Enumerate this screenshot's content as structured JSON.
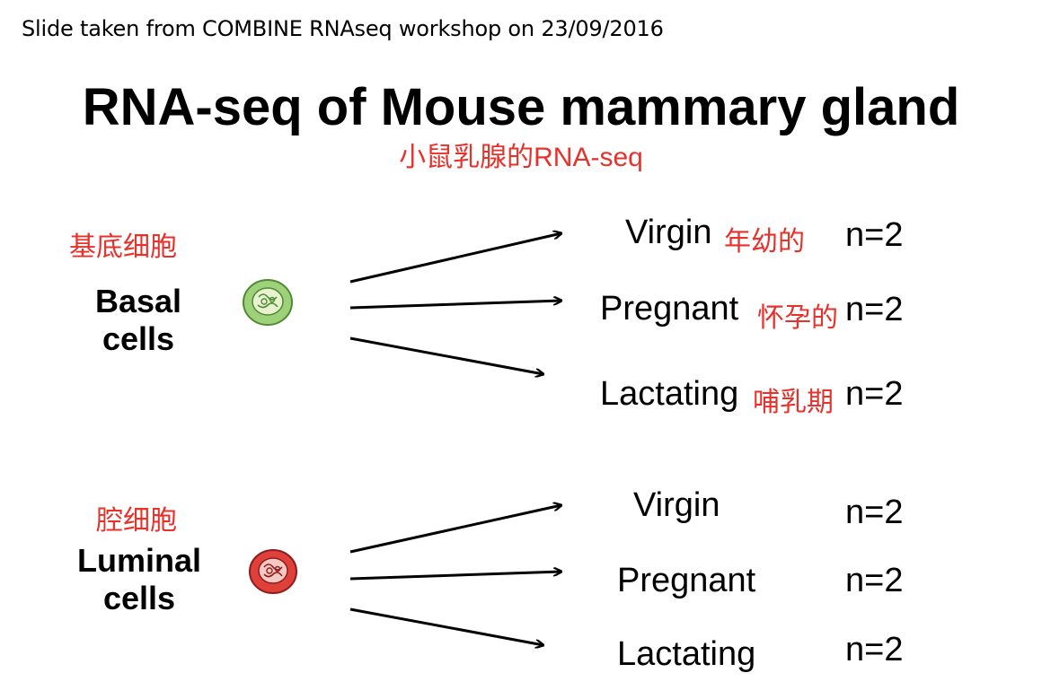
{
  "source_note": "Slide taken from COMBINE RNAseq workshop on 23/09/2016",
  "title": "RNA-seq of Mouse mammary gland",
  "subtitle_cn": "小鼠乳腺的RNA-seq",
  "colors": {
    "annotation": "#e8312a",
    "basal_cell": "#7fbf5a",
    "luminal_cell": "#e0403a"
  },
  "groups": [
    {
      "cn_label": "基底细胞",
      "label_line1": "Basal",
      "label_line2": "cells",
      "icon": "basal-cell-icon",
      "conditions": [
        {
          "label": "Virgin",
          "cn": "年幼的",
          "n": "n=2"
        },
        {
          "label": "Pregnant",
          "cn": "怀孕的",
          "n": "n=2"
        },
        {
          "label": "Lactating",
          "cn": "哺乳期",
          "n": "n=2"
        }
      ]
    },
    {
      "cn_label": "腔细胞",
      "label_line1": "Luminal",
      "label_line2": "cells",
      "icon": "luminal-cell-icon",
      "conditions": [
        {
          "label": "Virgin",
          "n": "n=2"
        },
        {
          "label": "Pregnant",
          "n": "n=2"
        },
        {
          "label": "Lactating",
          "n": "n=2"
        }
      ]
    }
  ]
}
